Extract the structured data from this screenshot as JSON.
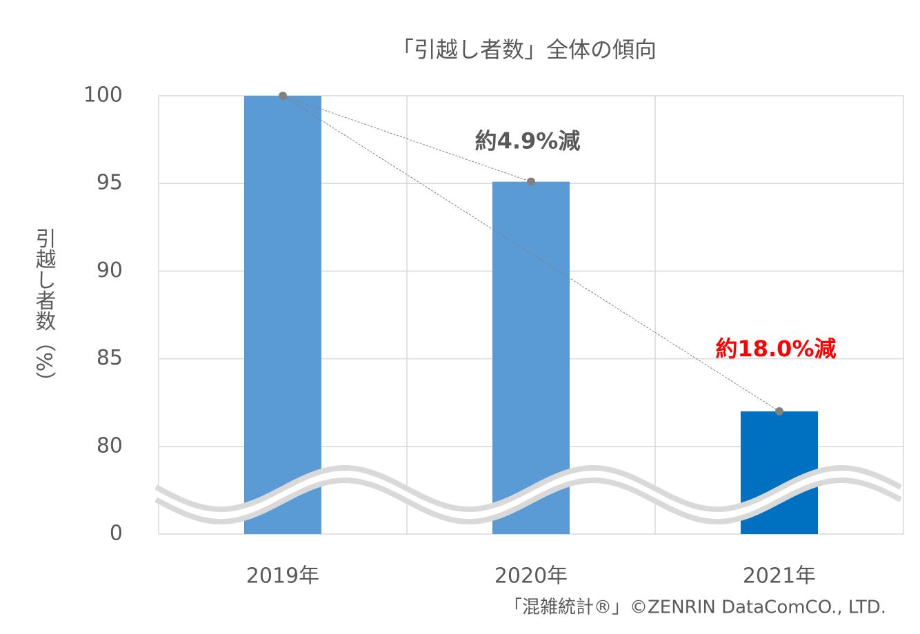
{
  "chart_data": {
    "type": "bar",
    "title": "「引越し者数」全体の傾向",
    "y_label": "引越し者数（%）",
    "categories": [
      "2019年",
      "2020年",
      "2021年"
    ],
    "values": [
      100,
      95.1,
      82.0
    ],
    "colors": [
      "#5b9bd5",
      "#5b9bd5",
      "#0070c0"
    ],
    "ylim": [
      0,
      100
    ],
    "yticks": [
      0,
      80,
      85,
      90,
      95,
      100
    ],
    "axis_break": true,
    "grid": true,
    "annotations": [
      {
        "text": "約4.9%減",
        "color": "#595959"
      },
      {
        "text": "約18.0%減",
        "color": "#ff0000"
      }
    ],
    "credit": "「混雑統計®」©ZENRIN DataComCO., LTD."
  }
}
